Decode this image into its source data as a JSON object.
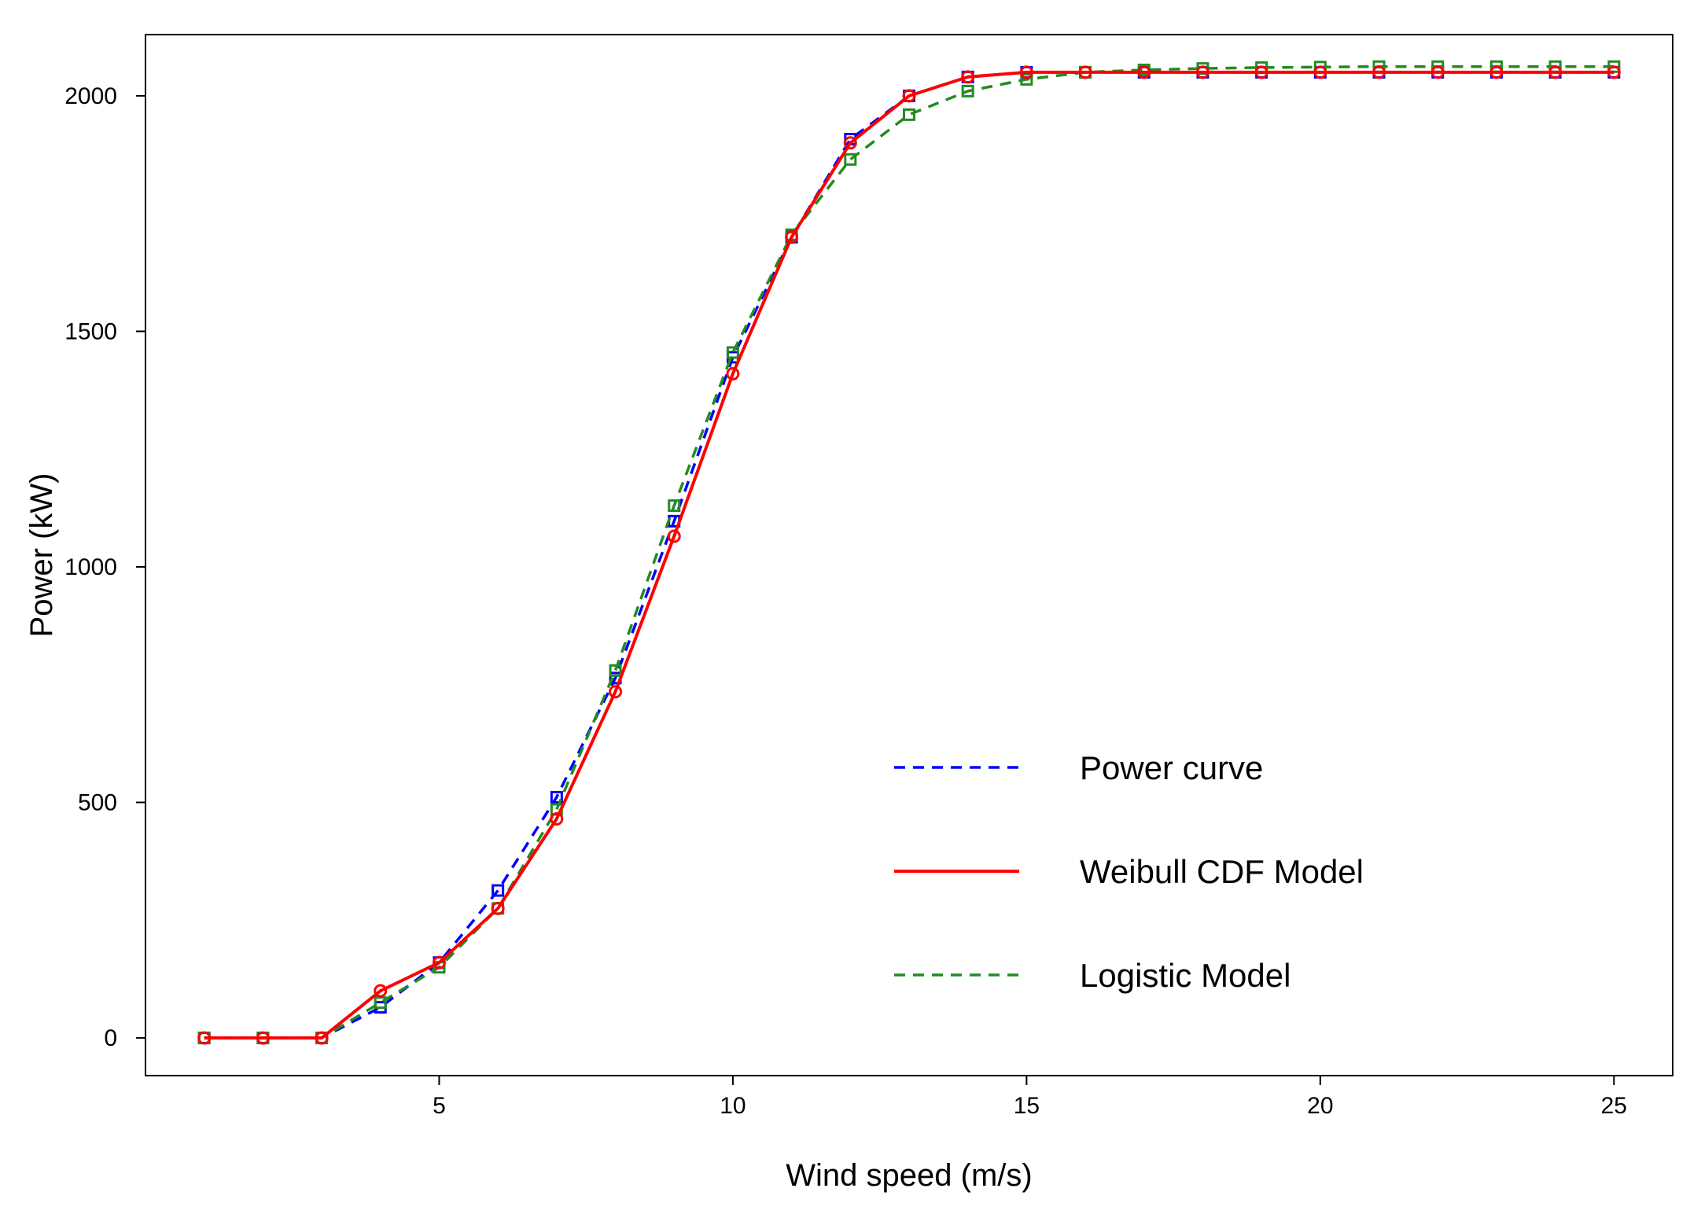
{
  "chart_data": {
    "type": "line",
    "title": "",
    "xlabel": "Wind speed (m/s)",
    "ylabel": "Power (kW)",
    "xlim": [
      0.0,
      26.0
    ],
    "ylim": [
      -80,
      2130
    ],
    "x_ticks": [
      5,
      10,
      15,
      20,
      25
    ],
    "y_ticks": [
      0,
      500,
      1000,
      1500,
      2000
    ],
    "x_tick_labels": [
      "5",
      "10",
      "15",
      "20",
      "25"
    ],
    "y_tick_labels": [
      "0",
      "500",
      "1000",
      "1500",
      "2000"
    ],
    "grid": false,
    "legend_position": "bottom-right",
    "x": [
      1,
      2,
      3,
      4,
      5,
      6,
      7,
      8,
      9,
      10,
      11,
      12,
      13,
      14,
      15,
      16,
      17,
      18,
      19,
      20,
      21,
      22,
      23,
      24,
      25
    ],
    "series": [
      {
        "name": "Power curve",
        "color": "#0000ff",
        "line_style": "dashed",
        "marker": "square",
        "values": [
          0,
          0,
          0,
          65,
          160,
          313,
          511,
          764,
          1097,
          1445,
          1700,
          1908,
          2000,
          2040,
          2050,
          2050,
          2050,
          2050,
          2050,
          2050,
          2050,
          2050,
          2050,
          2050,
          2050
        ]
      },
      {
        "name": "Weibull CDF Model",
        "color": "#ff0000",
        "line_style": "solid",
        "marker": "circle",
        "values": [
          0,
          0,
          0,
          100,
          160,
          275,
          465,
          735,
          1065,
          1410,
          1700,
          1900,
          2000,
          2040,
          2050,
          2050,
          2050,
          2050,
          2050,
          2050,
          2050,
          2050,
          2050,
          2050,
          2050
        ]
      },
      {
        "name": "Logistic Model",
        "color": "#228b22",
        "line_style": "dashed",
        "marker": "square",
        "values": [
          0,
          0,
          0,
          75,
          150,
          275,
          485,
          780,
          1130,
          1455,
          1705,
          1865,
          1960,
          2010,
          2035,
          2050,
          2055,
          2058,
          2060,
          2061,
          2062,
          2062,
          2062,
          2062,
          2062
        ]
      }
    ]
  }
}
